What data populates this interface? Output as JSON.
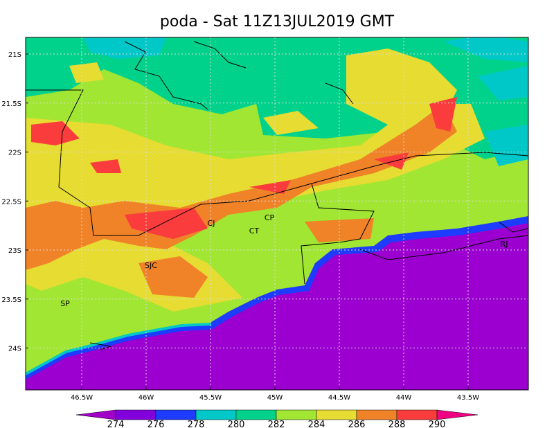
{
  "title": "poda - Sat 11Z13JUL2019 GMT",
  "lon_ticks": [
    {
      "value": -46.5,
      "label": "46.5W"
    },
    {
      "value": -46,
      "label": "46W"
    },
    {
      "value": -45.5,
      "label": "45.5W"
    },
    {
      "value": -45,
      "label": "45W"
    },
    {
      "value": -44.5,
      "label": "44.5W"
    },
    {
      "value": -44,
      "label": "44W"
    },
    {
      "value": -43.5,
      "label": "43.5W"
    }
  ],
  "lat_ticks": [
    {
      "value": -21,
      "label": "21S"
    },
    {
      "value": -21.5,
      "label": "21.5S"
    },
    {
      "value": -22,
      "label": "22S"
    },
    {
      "value": -22.5,
      "label": "22.5S"
    },
    {
      "value": -23,
      "label": "23S"
    },
    {
      "value": -23.5,
      "label": "23.5S"
    },
    {
      "value": -24,
      "label": "24S"
    }
  ],
  "colorbar": {
    "levels": [
      274,
      276,
      278,
      280,
      282,
      284,
      286,
      288,
      290
    ],
    "colors": [
      "#a000c8",
      "#8200dc",
      "#1e3cff",
      "#00c8c8",
      "#00d28c",
      "#a0e632",
      "#e6dc32",
      "#f08228",
      "#fa3c3c",
      "#f00082"
    ]
  },
  "places": [
    {
      "label": "CJ"
    },
    {
      "label": "CP"
    },
    {
      "label": "CT"
    },
    {
      "label": "SJC"
    },
    {
      "label": "SP"
    },
    {
      "label": "RJ"
    }
  ]
}
